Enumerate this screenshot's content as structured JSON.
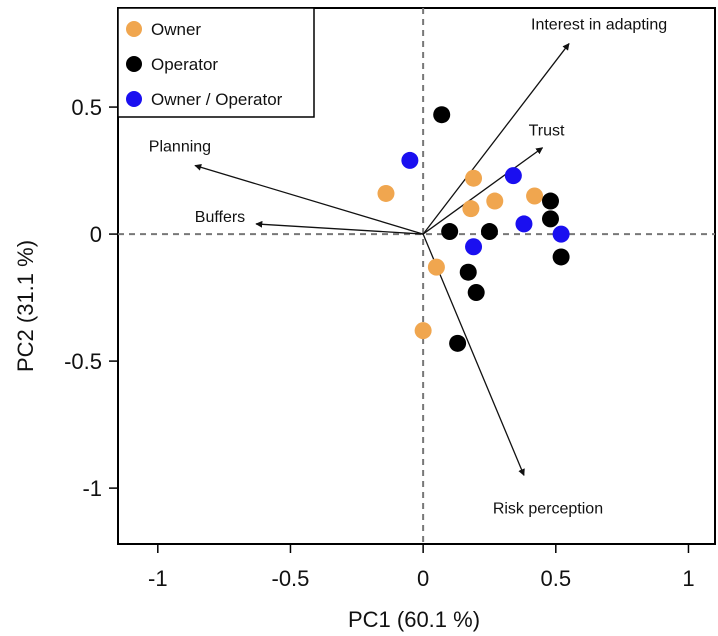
{
  "chart_data": {
    "type": "scatter",
    "xlabel": "PC1 (60.1 %)",
    "ylabel": "PC2 (31.1 %)",
    "xlim": [
      -1.15,
      1.1
    ],
    "ylim": [
      -1.22,
      0.89
    ],
    "x_ticks": [
      -1,
      -0.5,
      0,
      0.5,
      1
    ],
    "x_tick_labels": [
      "-1",
      "-0.5",
      "0",
      "0.5",
      "1"
    ],
    "y_ticks": [
      -1,
      -0.5,
      0,
      0.5
    ],
    "y_tick_labels": [
      "-1",
      "-0.5",
      "0",
      "0.5"
    ],
    "reference_lines": {
      "x": 0,
      "y": 0,
      "style": "dashed"
    },
    "legend": {
      "position": "top-left",
      "boxed": true
    },
    "series": [
      {
        "name": "Owner",
        "color": "#f0a64f",
        "points": [
          {
            "x": -0.14,
            "y": 0.16
          },
          {
            "x": 0.19,
            "y": 0.22
          },
          {
            "x": 0.18,
            "y": 0.1
          },
          {
            "x": 0.27,
            "y": 0.13
          },
          {
            "x": 0.42,
            "y": 0.15
          },
          {
            "x": 0.05,
            "y": -0.13
          },
          {
            "x": 0.0,
            "y": -0.38
          }
        ]
      },
      {
        "name": "Operator",
        "color": "#000000",
        "points": [
          {
            "x": 0.07,
            "y": 0.47
          },
          {
            "x": 0.48,
            "y": 0.13
          },
          {
            "x": 0.48,
            "y": 0.06
          },
          {
            "x": 0.1,
            "y": 0.01
          },
          {
            "x": 0.25,
            "y": 0.01
          },
          {
            "x": 0.52,
            "y": -0.09
          },
          {
            "x": 0.17,
            "y": -0.15
          },
          {
            "x": 0.2,
            "y": -0.23
          },
          {
            "x": 0.13,
            "y": -0.43
          }
        ]
      },
      {
        "name": "Owner / Operator",
        "color": "#1a0ff0",
        "points": [
          {
            "x": -0.05,
            "y": 0.29
          },
          {
            "x": 0.34,
            "y": 0.23
          },
          {
            "x": 0.38,
            "y": 0.04
          },
          {
            "x": 0.52,
            "y": 0.0
          },
          {
            "x": 0.19,
            "y": -0.05
          }
        ]
      }
    ],
    "vectors": [
      {
        "label": "Interest in adapting",
        "x": 0.55,
        "y": 0.75,
        "label_anchor": "middle",
        "label_dx": 30,
        "label_dy": -14
      },
      {
        "label": "Trust",
        "x": 0.45,
        "y": 0.34,
        "label_anchor": "middle",
        "label_dx": 4,
        "label_dy": -12
      },
      {
        "label": "Planning",
        "x": -0.86,
        "y": 0.27,
        "label_anchor": "middle",
        "label_dx": -15,
        "label_dy": -14
      },
      {
        "label": "Buffers",
        "x": -0.63,
        "y": 0.04,
        "label_anchor": "middle",
        "label_dx": -36,
        "label_dy": -2
      },
      {
        "label": "Risk perception",
        "x": 0.38,
        "y": -0.95,
        "label_anchor": "middle",
        "label_dx": 24,
        "label_dy": 38
      }
    ]
  }
}
